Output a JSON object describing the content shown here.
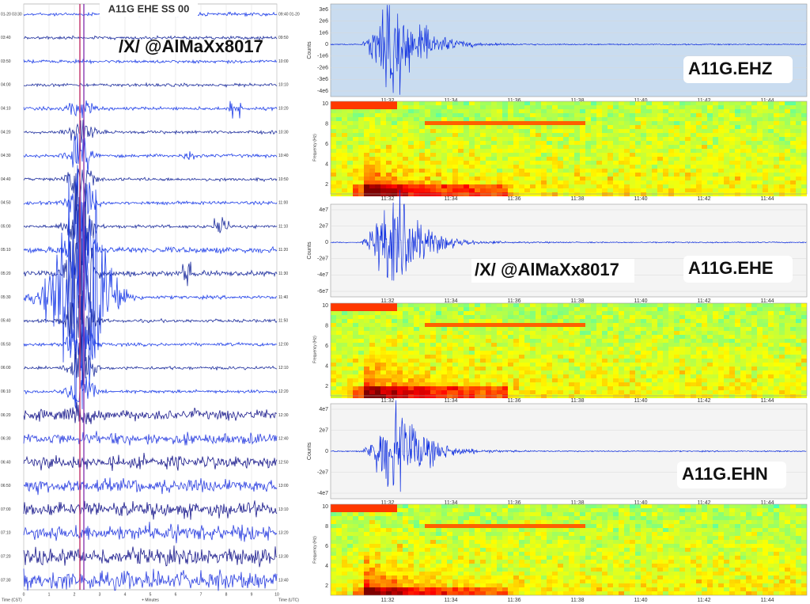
{
  "helicorder": {
    "title": "A11G EHE SS 00",
    "watermark": "/X/ @AlMaXx8017",
    "left_times": [
      "01-20 03:30",
      "03:40",
      "03:50",
      "04:00",
      "04:10",
      "04:20",
      "04:30",
      "04:40",
      "04:50",
      "05:00",
      "05:10",
      "05:20",
      "05:30",
      "05:40",
      "05:50",
      "06:00",
      "06:10",
      "06:20",
      "06:30",
      "06:40",
      "06:50",
      "07:00",
      "07:10",
      "07:20",
      "07:30"
    ],
    "right_times": [
      "09:40 01-20",
      "09:50",
      "10:00",
      "10:10",
      "10:20",
      "10:30",
      "10:40",
      "10:50",
      "11:00",
      "11:10",
      "11:20",
      "11:30",
      "11:40",
      "11:50",
      "12:00",
      "12:10",
      "12:20",
      "12:30",
      "12:40",
      "12:50",
      "13:00",
      "13:10",
      "13:20",
      "13:30",
      "13:40"
    ],
    "x_ticks": [
      "0",
      "1",
      "2",
      "3",
      "4",
      "5",
      "6",
      "7",
      "8",
      "9",
      "10"
    ],
    "x_label": "+ Minutes",
    "left_axis_label": "Time (CST)",
    "right_axis_label": "Time (UTC)"
  },
  "panels": [
    {
      "station": "A11G.EHZ",
      "y_label": "Counts",
      "y_ticks": [
        "3e6",
        "2e6",
        "1e6",
        "0",
        "-1e6",
        "-2e6",
        "-3e6",
        "-4e6"
      ],
      "spectrogram_y_label": "Frequency (Hz)",
      "spectrogram_y_ticks": [
        "10",
        "8",
        "6",
        "4",
        "2"
      ]
    },
    {
      "station": "A11G.EHE",
      "y_label": "Counts",
      "y_ticks": [
        "4e7",
        "2e7",
        "0",
        "-2e7",
        "-4e7",
        "-6e7"
      ],
      "spectrogram_y_label": "Frequency (Hz)",
      "spectrogram_y_ticks": [
        "10",
        "8",
        "6",
        "4",
        "2"
      ]
    },
    {
      "station": "A11G.EHN",
      "y_label": "Counts",
      "y_ticks": [
        "4e7",
        "2e7",
        "0",
        "-2e7",
        "-4e7"
      ],
      "spectrogram_y_label": "Frequency (Hz)",
      "spectrogram_y_ticks": [
        "10",
        "8",
        "6",
        "4",
        "2"
      ]
    }
  ],
  "time_ticks": [
    "11:32",
    "11:34",
    "11:36",
    "11:38",
    "11:40",
    "11:42",
    "11:44"
  ],
  "watermark2": "/X/ @AlMaXx8017"
}
